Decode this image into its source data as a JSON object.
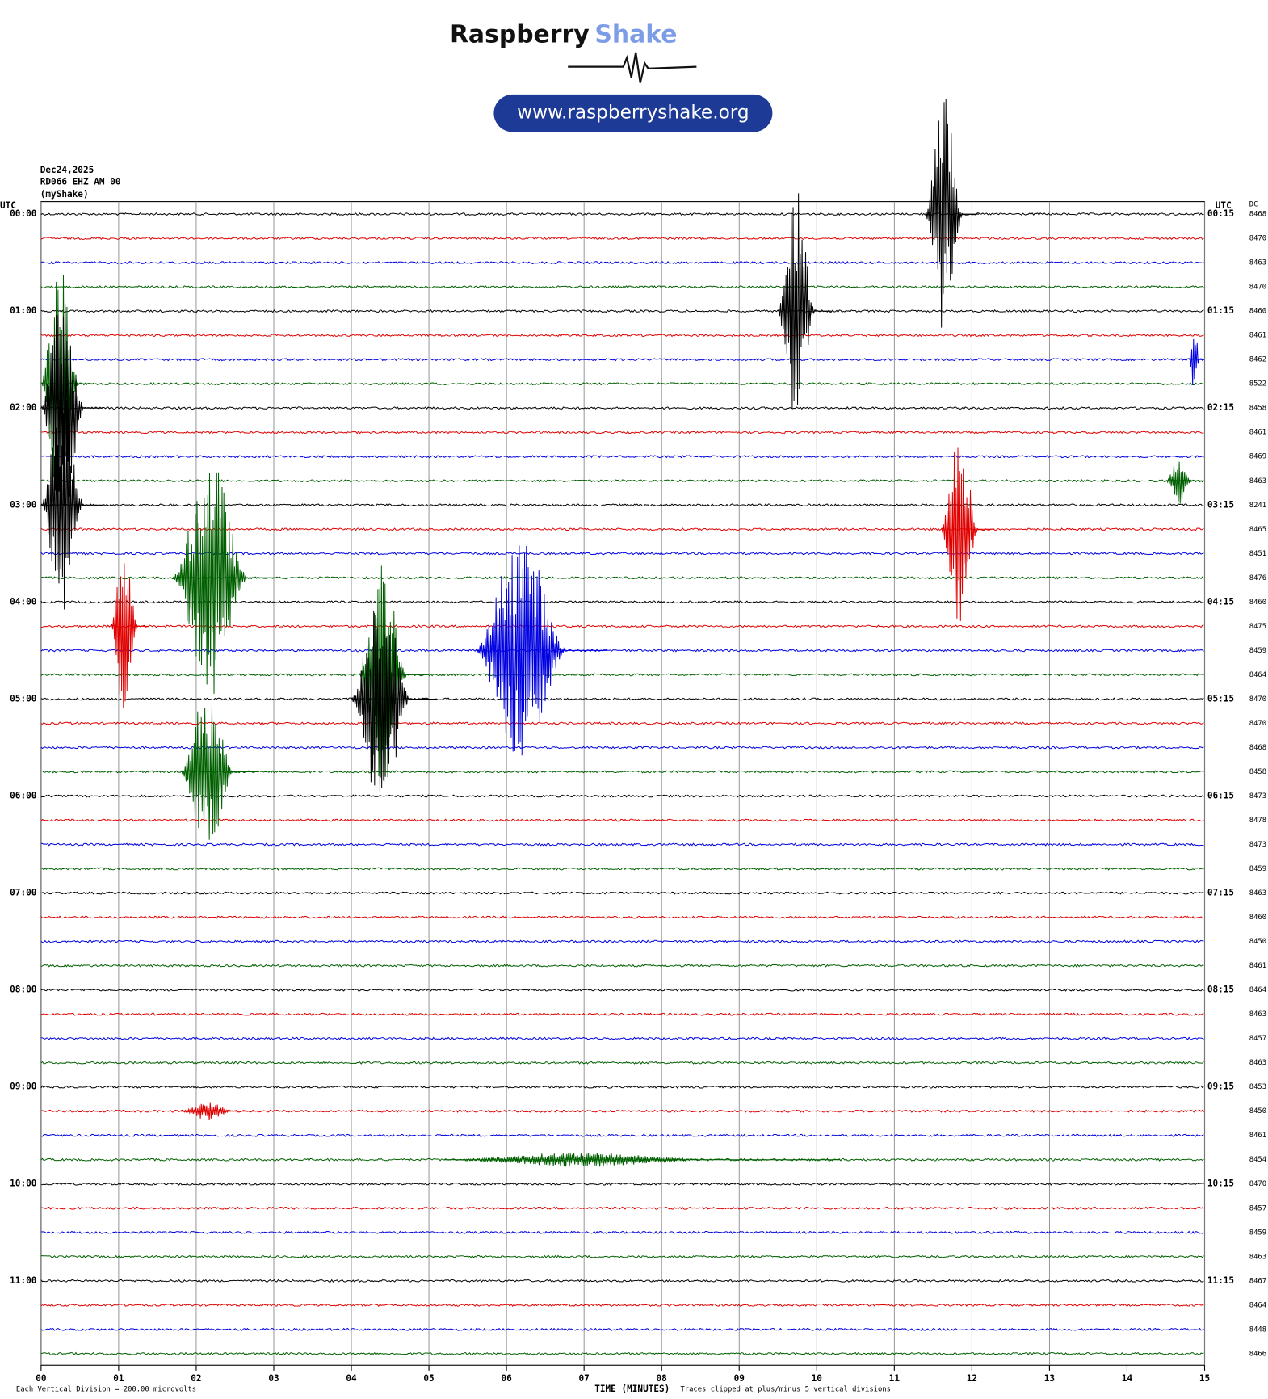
{
  "header": {
    "brand_dark": "Raspberry",
    "brand_light": "Shake",
    "url": "www.raspberryshake.org"
  },
  "chart_data": {
    "type": "helicorder",
    "date": "Dec24,2025",
    "station": "RD066 EHZ AM 00",
    "network": "(myShake)",
    "left_unit": "UTC",
    "right_unit": "UTC",
    "dc_header": "DC",
    "x_label": "TIME (MINUTES)",
    "scale_note": "Each Vertical Division =  200.00 microvolts",
    "clip_note": "Traces clipped at plus/minus 5 vertical divisions",
    "colors": [
      "#000000",
      "#e00000",
      "#0000e0",
      "#006000"
    ],
    "xlim": [
      0,
      15
    ],
    "xticks": [
      {
        "value": 0,
        "label": "00"
      },
      {
        "value": 1,
        "label": "01"
      },
      {
        "value": 2,
        "label": "02"
      },
      {
        "value": 3,
        "label": "03"
      },
      {
        "value": 4,
        "label": "04"
      },
      {
        "value": 5,
        "label": "05"
      },
      {
        "value": 6,
        "label": "06"
      },
      {
        "value": 7,
        "label": "07"
      },
      {
        "value": 8,
        "label": "08"
      },
      {
        "value": 9,
        "label": "09"
      },
      10,
      11,
      12,
      13,
      14,
      15
    ],
    "left_labels": [
      "00:00",
      "01:00",
      "02:00",
      "03:00",
      "04:00",
      "05:00",
      "06:00",
      "07:00",
      "08:00",
      "09:00",
      "10:00",
      "11:00"
    ],
    "right_labels": [
      "00:15",
      "01:15",
      "02:15",
      "03:15",
      "04:15",
      "05:15",
      "06:15",
      "07:15",
      "08:15",
      "09:15",
      "10:15",
      "11:15"
    ],
    "dc": [
      8468,
      8470,
      8463,
      8470,
      8460,
      8461,
      8462,
      8522,
      8458,
      8461,
      8469,
      8463,
      8241,
      8465,
      8451,
      8476,
      8460,
      8475,
      8459,
      8464,
      8470,
      8470,
      8468,
      8458,
      8473,
      8478,
      8473,
      8459,
      8463,
      8460,
      8450,
      8461,
      8464,
      8463,
      8457,
      8463,
      8453,
      8450,
      8461,
      8454,
      8470,
      8457,
      8459,
      8463,
      8467,
      8464,
      8448,
      8466
    ],
    "events": [
      {
        "row": 0,
        "start": 11.4,
        "end": 12.1,
        "amplitude": 5
      },
      {
        "row": 4,
        "start": 9.5,
        "end": 10.2,
        "amplitude": 5
      },
      {
        "row": 6,
        "start": 14.8,
        "end": 15,
        "amplitude": 1.5
      },
      {
        "row": 7,
        "start": 0,
        "end": 0.7,
        "amplitude": 5
      },
      {
        "row": 8,
        "start": 0,
        "end": 0.8,
        "amplitude": 5
      },
      {
        "row": 11,
        "start": 14.5,
        "end": 15,
        "amplitude": 1
      },
      {
        "row": 12,
        "start": 0,
        "end": 0.8,
        "amplitude": 5
      },
      {
        "row": 13,
        "start": 11.6,
        "end": 12.3,
        "amplitude": 4
      },
      {
        "row": 15,
        "start": 1.7,
        "end": 3.1,
        "amplitude": 5
      },
      {
        "row": 17,
        "start": 0.9,
        "end": 1.4,
        "amplitude": 4
      },
      {
        "row": 18,
        "start": 5.6,
        "end": 7.3,
        "amplitude": 5
      },
      {
        "row": 19,
        "start": 4.1,
        "end": 5.0,
        "amplitude": 5
      },
      {
        "row": 20,
        "start": 4.0,
        "end": 5.1,
        "amplitude": 5
      },
      {
        "row": 23,
        "start": 1.8,
        "end": 2.8,
        "amplitude": 3.5
      },
      {
        "row": 37,
        "start": 1.8,
        "end": 2.8,
        "amplitude": 0.4
      },
      {
        "row": 39,
        "start": 5.2,
        "end": 10.3,
        "amplitude": 0.3
      }
    ]
  }
}
